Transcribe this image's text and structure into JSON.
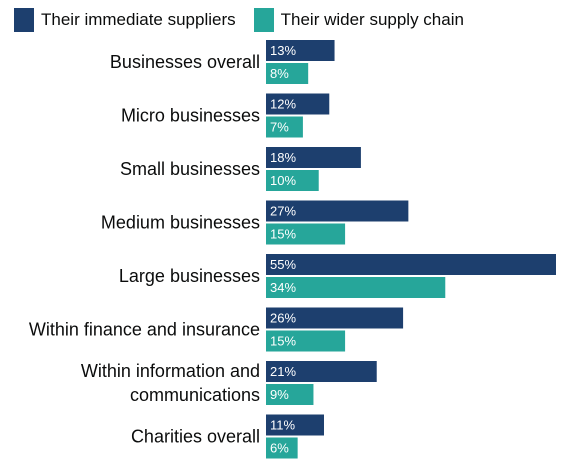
{
  "colors": {
    "series1": "#1d3f6e",
    "series2": "#26a69a",
    "text": "#0b0c0c",
    "label_on_bar": "#ffffff"
  },
  "legend": {
    "position": "top-left",
    "items": [
      {
        "label": "Their immediate suppliers",
        "color": "#1d3f6e"
      },
      {
        "label": "Their wider supply chain",
        "color": "#26a69a"
      }
    ]
  },
  "chart_data": {
    "type": "bar",
    "orientation": "horizontal",
    "title": "",
    "xlabel": "",
    "ylabel": "",
    "xlim": [
      0,
      55
    ],
    "grid": false,
    "value_suffix": "%",
    "categories": [
      [
        "Businesses overall"
      ],
      [
        "Micro businesses"
      ],
      [
        "Small businesses"
      ],
      [
        "Medium businesses"
      ],
      [
        "Large businesses"
      ],
      [
        "Within finance and insurance"
      ],
      [
        "Within information and",
        "communications"
      ],
      [
        "Charities overall"
      ]
    ],
    "series": [
      {
        "name": "Their immediate suppliers",
        "color": "#1d3f6e",
        "values": [
          13,
          12,
          18,
          27,
          55,
          26,
          21,
          11
        ]
      },
      {
        "name": "Their wider supply chain",
        "color": "#26a69a",
        "values": [
          8,
          7,
          10,
          15,
          34,
          15,
          9,
          6
        ]
      }
    ]
  }
}
